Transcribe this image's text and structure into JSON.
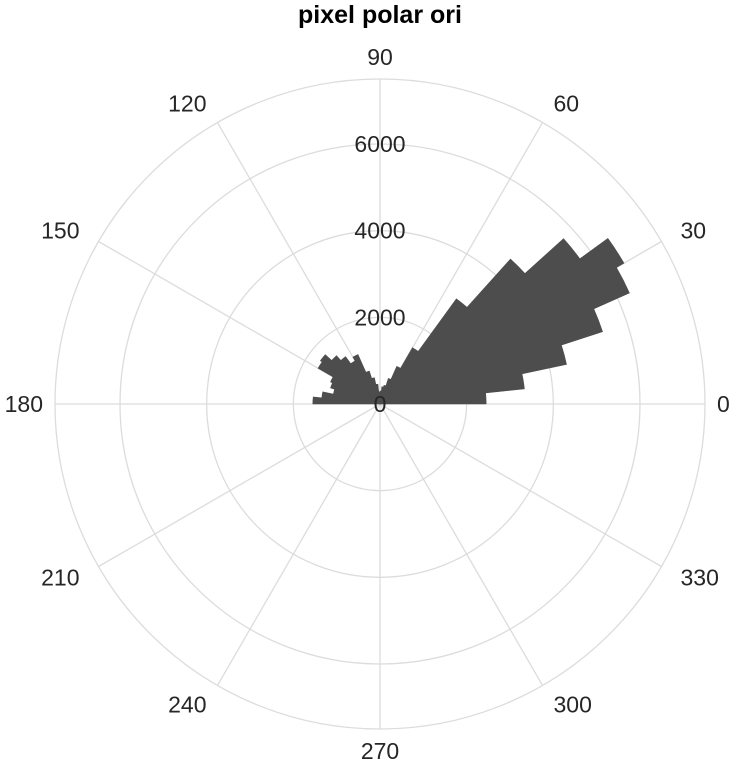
{
  "chart_data": {
    "type": "polar-histogram",
    "title": "pixel polar ori",
    "bin_width_deg": 6,
    "theta_ticks": [
      "0",
      "30",
      "60",
      "90",
      "120",
      "150",
      "180",
      "210",
      "240",
      "270",
      "300",
      "330"
    ],
    "radial_ticks": [
      "0",
      "2000",
      "4000",
      "6000"
    ],
    "rlim": [
      0,
      7500
    ],
    "grid": true,
    "bar_color": "#4d4d4d",
    "bins": [
      {
        "start": 0,
        "end": 6,
        "value": 2450
      },
      {
        "start": 6,
        "end": 12,
        "value": 3350
      },
      {
        "start": 12,
        "end": 18,
        "value": 4400
      },
      {
        "start": 18,
        "end": 24,
        "value": 5400
      },
      {
        "start": 24,
        "end": 30,
        "value": 6300
      },
      {
        "start": 30,
        "end": 36,
        "value": 6500
      },
      {
        "start": 36,
        "end": 42,
        "value": 5700
      },
      {
        "start": 42,
        "end": 48,
        "value": 4500
      },
      {
        "start": 48,
        "end": 54,
        "value": 3000
      },
      {
        "start": 54,
        "end": 60,
        "value": 1500
      },
      {
        "start": 60,
        "end": 66,
        "value": 950
      },
      {
        "start": 66,
        "end": 72,
        "value": 620
      },
      {
        "start": 72,
        "end": 78,
        "value": 440
      },
      {
        "start": 78,
        "end": 84,
        "value": 400
      },
      {
        "start": 84,
        "end": 90,
        "value": 300
      },
      {
        "start": 90,
        "end": 96,
        "value": 280
      },
      {
        "start": 96,
        "end": 102,
        "value": 460
      },
      {
        "start": 102,
        "end": 108,
        "value": 620
      },
      {
        "start": 108,
        "end": 114,
        "value": 800
      },
      {
        "start": 114,
        "end": 120,
        "value": 1250
      },
      {
        "start": 120,
        "end": 126,
        "value": 1150
      },
      {
        "start": 126,
        "end": 132,
        "value": 1350
      },
      {
        "start": 132,
        "end": 138,
        "value": 1500
      },
      {
        "start": 138,
        "end": 144,
        "value": 1700
      },
      {
        "start": 144,
        "end": 150,
        "value": 1650
      },
      {
        "start": 150,
        "end": 156,
        "value": 1250
      },
      {
        "start": 156,
        "end": 162,
        "value": 1200
      },
      {
        "start": 162,
        "end": 168,
        "value": 1100
      },
      {
        "start": 168,
        "end": 174,
        "value": 1350
      },
      {
        "start": 174,
        "end": 180,
        "value": 1550
      }
    ]
  }
}
